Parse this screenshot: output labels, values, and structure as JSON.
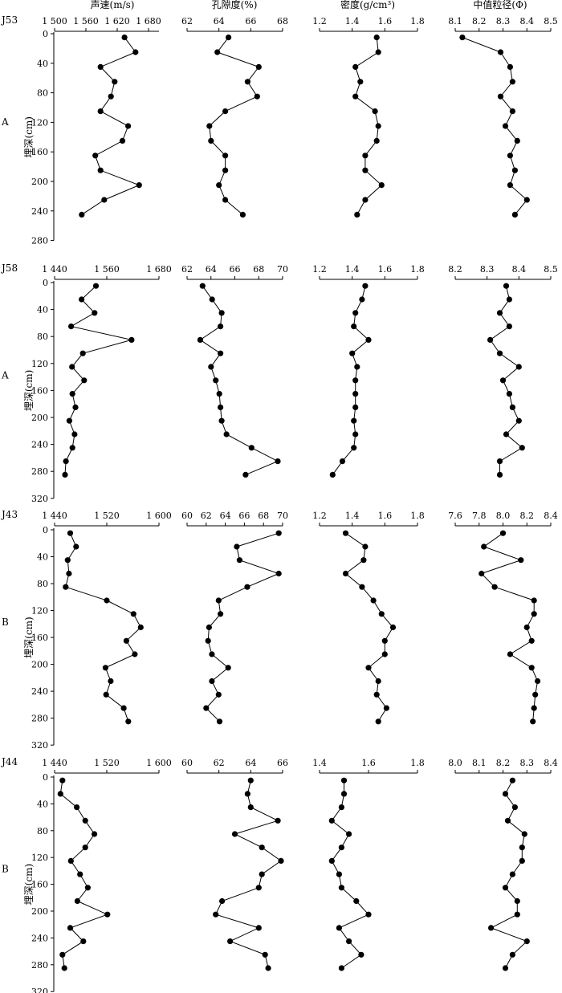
{
  "figure": {
    "column_titles": [
      "声速(m/s)",
      "孔隙度(%)",
      "密度(g/cm³)",
      "中值粒径(Φ)"
    ]
  },
  "chart_data": [
    {
      "type": "line",
      "core": "J53",
      "facies": "A",
      "ylabel": "埋深(cm)",
      "ylim": [
        0,
        280
      ],
      "yticks": [
        0,
        40,
        80,
        120,
        160,
        200,
        240,
        280
      ],
      "depth": [
        5,
        25,
        45,
        65,
        85,
        105,
        125,
        145,
        165,
        185,
        205,
        225,
        245
      ],
      "series": [
        {
          "name": "声速(m/s)",
          "xlim": [
            1500,
            1700
          ],
          "xticks": [
            1500,
            1560,
            1620,
            1680
          ],
          "xticklabels": [
            "1 500",
            "1 560",
            "1 620",
            "1 680"
          ],
          "values": [
            1634,
            1655,
            1588,
            1615,
            1608,
            1588,
            1641,
            1630,
            1578,
            1588,
            1662,
            1595,
            1552
          ]
        },
        {
          "name": "孔隙度(%)",
          "xlim": [
            62,
            68
          ],
          "xticks": [
            62,
            64,
            66,
            68
          ],
          "xticklabels": [
            "62",
            "64",
            "66",
            "68"
          ],
          "values": [
            64.6,
            63.9,
            66.5,
            65.8,
            66.4,
            64.4,
            63.4,
            63.5,
            64.4,
            64.4,
            64.0,
            64.4,
            65.5
          ]
        },
        {
          "name": "密度(g/cm³)",
          "xlim": [
            1.2,
            1.8
          ],
          "xticks": [
            1.2,
            1.4,
            1.6,
            1.8
          ],
          "xticklabels": [
            "1.2",
            "1.4",
            "1.6",
            "1.8"
          ],
          "values": [
            1.55,
            1.56,
            1.42,
            1.45,
            1.42,
            1.54,
            1.56,
            1.55,
            1.48,
            1.48,
            1.58,
            1.48,
            1.43
          ]
        },
        {
          "name": "中值粒径(Φ)",
          "xlim": [
            8.1,
            8.5
          ],
          "xticks": [
            8.1,
            8.2,
            8.3,
            8.4,
            8.5
          ],
          "xticklabels": [
            "8.1",
            "8.2",
            "8.3",
            "8.4",
            "8.5"
          ],
          "values": [
            8.13,
            8.29,
            8.33,
            8.34,
            8.29,
            8.34,
            8.31,
            8.36,
            8.33,
            8.35,
            8.33,
            8.4,
            8.35
          ]
        }
      ]
    },
    {
      "type": "line",
      "core": "J58",
      "facies": "A",
      "ylabel": "埋深(cm)",
      "ylim": [
        0,
        320
      ],
      "yticks": [
        0,
        40,
        80,
        120,
        160,
        200,
        240,
        280,
        320
      ],
      "depth": [
        5,
        25,
        45,
        65,
        85,
        105,
        125,
        145,
        165,
        185,
        205,
        225,
        245,
        265,
        285
      ],
      "series": [
        {
          "name": "声速(m/s)",
          "xlim": [
            1440,
            1680
          ],
          "xticks": [
            1440,
            1560,
            1680
          ],
          "xticklabels": [
            "1 440",
            "1 560",
            "1 680"
          ],
          "values": [
            1535,
            1502,
            1532,
            1478,
            1617,
            1505,
            1480,
            1508,
            1481,
            1488,
            1474,
            1486,
            1481,
            1466,
            1464
          ]
        },
        {
          "name": "孔隙度(%)",
          "xlim": [
            62,
            70
          ],
          "xticks": [
            62,
            64,
            66,
            68,
            70
          ],
          "xticklabels": [
            "62",
            "64",
            "66",
            "68",
            "70"
          ],
          "values": [
            63.3,
            64.1,
            64.9,
            64.8,
            63.1,
            64.8,
            64.0,
            64.4,
            64.7,
            64.8,
            64.9,
            65.3,
            67.4,
            69.6,
            66.9
          ]
        },
        {
          "name": "密度(g/cm³)",
          "xlim": [
            1.2,
            1.8
          ],
          "xticks": [
            1.2,
            1.4,
            1.6,
            1.8
          ],
          "xticklabels": [
            "1.2",
            "1.4",
            "1.6",
            "1.8"
          ],
          "values": [
            1.48,
            1.46,
            1.42,
            1.41,
            1.5,
            1.4,
            1.43,
            1.42,
            1.42,
            1.42,
            1.41,
            1.42,
            1.41,
            1.34,
            1.28
          ]
        },
        {
          "name": "中值粒径(Φ)",
          "xlim": [
            8.2,
            8.5
          ],
          "xticks": [
            8.2,
            8.3,
            8.4,
            8.5
          ],
          "xticklabels": [
            "8.2",
            "8.3",
            "8.4",
            "8.5"
          ],
          "values": [
            8.36,
            8.37,
            8.34,
            8.37,
            8.31,
            8.34,
            8.4,
            8.35,
            8.37,
            8.38,
            8.4,
            8.36,
            8.41,
            8.34,
            8.34
          ]
        }
      ]
    },
    {
      "type": "line",
      "core": "J43",
      "facies": "B",
      "ylabel": "埋深(cm)",
      "ylim": [
        0,
        320
      ],
      "yticks": [
        0,
        40,
        80,
        120,
        160,
        200,
        240,
        280,
        320
      ],
      "depth": [
        5,
        25,
        45,
        65,
        85,
        105,
        125,
        145,
        165,
        185,
        205,
        225,
        245,
        265,
        285
      ],
      "series": [
        {
          "name": "声速(m/s)",
          "xlim": [
            1440,
            1600
          ],
          "xticks": [
            1440,
            1520,
            1600
          ],
          "xticklabels": [
            "1 440",
            "1 520",
            "1 600"
          ],
          "values": [
            1464,
            1473,
            1460,
            1462,
            1457,
            1520,
            1561,
            1572,
            1550,
            1563,
            1518,
            1526,
            1519,
            1546,
            1553
          ]
        },
        {
          "name": "孔隙度(%)",
          "xlim": [
            60,
            70
          ],
          "xticks": [
            60,
            62,
            64,
            66,
            68,
            70
          ],
          "xticklabels": [
            "60",
            "62",
            "64",
            "66",
            "68",
            "70"
          ],
          "values": [
            69.6,
            65.2,
            65.5,
            69.6,
            66.3,
            63.3,
            63.5,
            62.3,
            62.2,
            62.6,
            64.3,
            62.6,
            63.3,
            62.0,
            63.4
          ]
        },
        {
          "name": "密度(g/cm³)",
          "xlim": [
            1.2,
            1.8
          ],
          "xticks": [
            1.2,
            1.4,
            1.6,
            1.8
          ],
          "xticklabels": [
            "1.2",
            "1.4",
            "1.6",
            "1.8"
          ],
          "values": [
            1.36,
            1.48,
            1.47,
            1.36,
            1.46,
            1.53,
            1.58,
            1.65,
            1.6,
            1.6,
            1.5,
            1.56,
            1.55,
            1.61,
            1.56
          ]
        },
        {
          "name": "中值粒径(Φ)",
          "xlim": [
            7.6,
            8.4
          ],
          "xticks": [
            7.6,
            7.8,
            8.0,
            8.2,
            8.4
          ],
          "xticklabels": [
            "7.6",
            "7.8",
            "8.0",
            "8.2",
            "8.4"
          ],
          "values": [
            8.0,
            7.84,
            8.15,
            7.82,
            7.93,
            8.26,
            8.26,
            8.2,
            8.24,
            8.06,
            8.24,
            8.29,
            8.27,
            8.26,
            8.25
          ]
        }
      ]
    },
    {
      "type": "line",
      "core": "J44",
      "facies": "B",
      "ylabel": "埋深(cm)",
      "ylim": [
        0,
        320
      ],
      "yticks": [
        0,
        40,
        80,
        120,
        160,
        200,
        240,
        280,
        320
      ],
      "depth": [
        5,
        25,
        45,
        65,
        85,
        105,
        125,
        145,
        165,
        185,
        205,
        225,
        245,
        265,
        285
      ],
      "series": [
        {
          "name": "声速(m/s)",
          "xlim": [
            1440,
            1600
          ],
          "xticks": [
            1440,
            1520,
            1600
          ],
          "xticklabels": [
            "1 440",
            "1 520",
            "1 600"
          ],
          "values": [
            1452,
            1449,
            1474,
            1487,
            1501,
            1487,
            1465,
            1479,
            1491,
            1475,
            1521,
            1464,
            1484,
            1452,
            1455
          ]
        },
        {
          "name": "孔隙度(%)",
          "xlim": [
            60,
            66
          ],
          "xticks": [
            60,
            62,
            64,
            66
          ],
          "xticklabels": [
            "60",
            "62",
            "64",
            "66"
          ],
          "values": [
            64.0,
            63.8,
            64.0,
            65.7,
            63.0,
            64.7,
            65.9,
            64.7,
            64.5,
            62.2,
            61.8,
            64.5,
            62.7,
            64.9,
            65.1
          ]
        },
        {
          "name": "密度(g/cm³)",
          "xlim": [
            1.4,
            1.8
          ],
          "xticks": [
            1.4,
            1.6,
            1.8
          ],
          "xticklabels": [
            "1.4",
            "1.6",
            "1.8"
          ],
          "values": [
            1.5,
            1.5,
            1.49,
            1.45,
            1.52,
            1.49,
            1.45,
            1.48,
            1.49,
            1.55,
            1.6,
            1.48,
            1.52,
            1.57,
            1.49
          ]
        },
        {
          "name": "中值粒径(Φ)",
          "xlim": [
            8.0,
            8.4
          ],
          "xticks": [
            8.0,
            8.1,
            8.2,
            8.3,
            8.4
          ],
          "xticklabels": [
            "8.0",
            "8.1",
            "8.2",
            "8.3",
            "8.4"
          ],
          "values": [
            8.24,
            8.21,
            8.25,
            8.22,
            8.29,
            8.28,
            8.28,
            8.24,
            8.21,
            8.26,
            8.26,
            8.15,
            8.3,
            8.24,
            8.21
          ]
        }
      ]
    }
  ]
}
